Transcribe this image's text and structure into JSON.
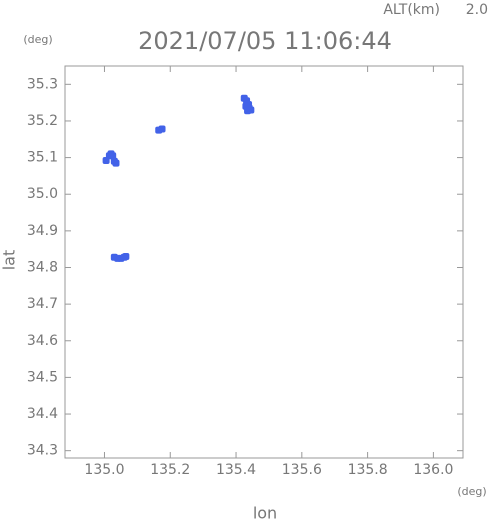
{
  "chart_data": {
    "type": "scatter",
    "title": "2021/07/05 11:06:44",
    "altitude_label": "ALT(km)",
    "altitude": "2.0",
    "x_label": "lon",
    "y_label": "lat",
    "x_unit": "(deg)",
    "y_unit": "(deg)",
    "color": "#4262e8",
    "x": [
      135.425,
      135.432,
      135.438,
      135.44,
      135.435,
      135.445,
      135.43,
      135.165,
      135.175,
      135.005,
      135.015,
      135.02,
      135.025,
      135.03,
      135.035,
      135.03,
      135.04,
      135.05,
      135.06,
      135.065
    ],
    "values": [
      35.262,
      35.255,
      35.245,
      35.235,
      35.228,
      35.23,
      35.24,
      35.175,
      35.178,
      35.092,
      35.105,
      35.11,
      35.105,
      35.09,
      35.085,
      34.828,
      34.825,
      34.825,
      34.828,
      34.83
    ],
    "xlim": [
      134.88,
      136.09
    ],
    "xticks": [
      {
        "value": 135,
        "label": "135.0"
      },
      135.2,
      135.4,
      135.6,
      135.8,
      {
        "value": 136,
        "label": "136.0"
      }
    ],
    "ylim": [
      34.28,
      35.35
    ],
    "yticks": [
      34.3,
      34.4,
      34.5,
      34.6,
      34.7,
      34.8,
      34.9,
      {
        "value": 35,
        "label": "35.0"
      },
      35.1,
      35.2,
      35.3
    ]
  }
}
